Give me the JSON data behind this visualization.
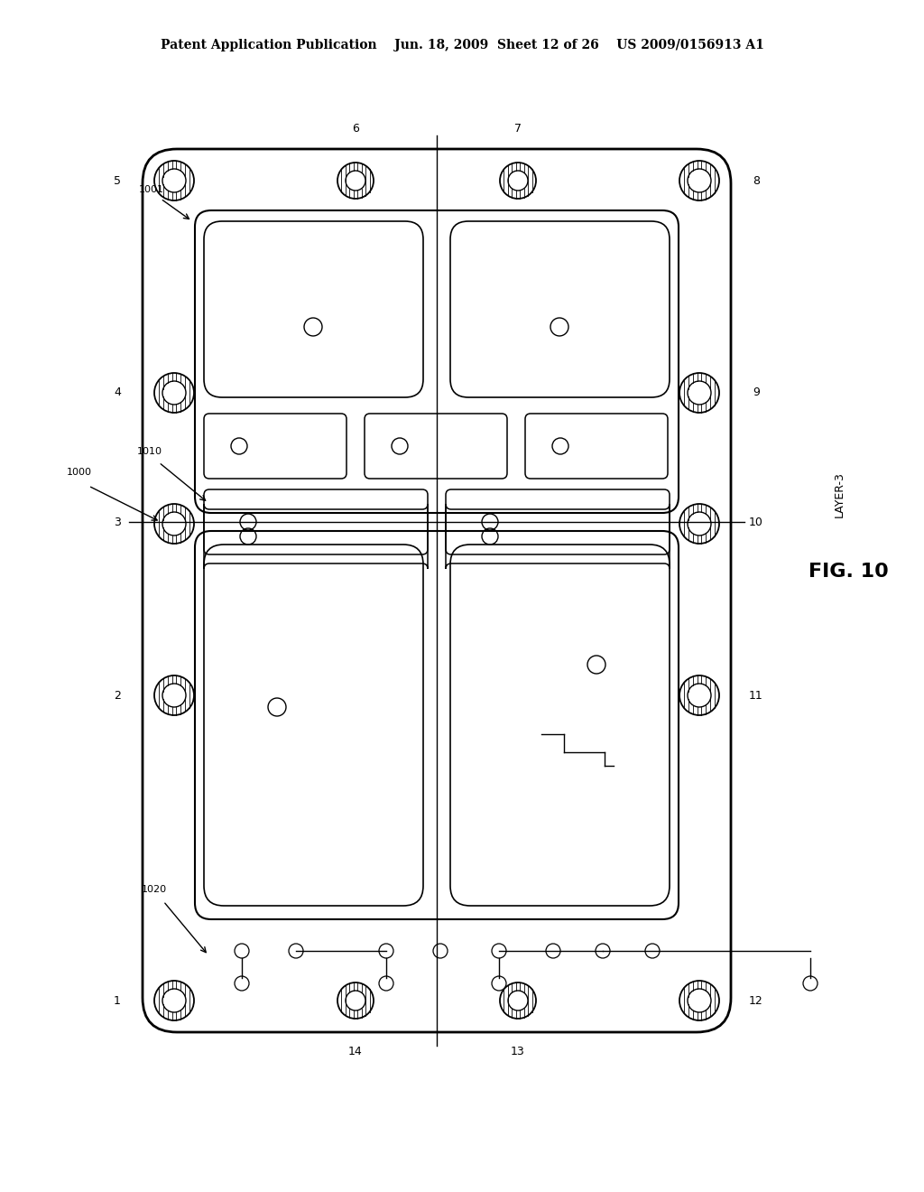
{
  "bg_color": "#ffffff",
  "line_color": "#000000",
  "header_text": "Patent Application Publication    Jun. 18, 2009  Sheet 12 of 26    US 2009/0156913 A1",
  "fig_label": "FIG. 10",
  "layer_label": "LAYER-3"
}
